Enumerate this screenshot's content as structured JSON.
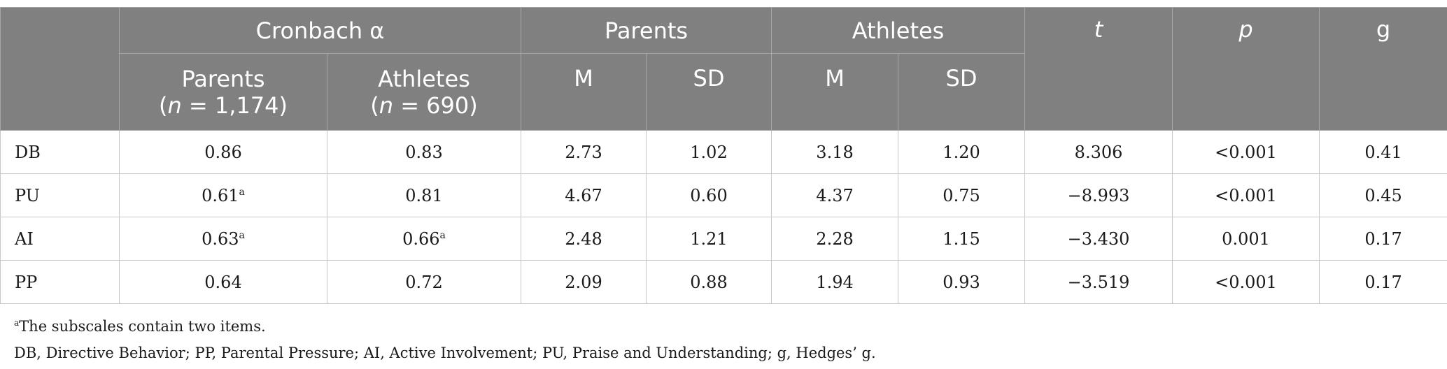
{
  "header": {
    "cronbach": "Cronbach α",
    "parents_group": "Parents",
    "athletes_group": "Athletes",
    "t": "t",
    "p": "p",
    "g": "g",
    "alpha_parents_label": "Parents",
    "alpha_parents_n_prefix": "(",
    "alpha_parents_n_var": "n",
    "alpha_parents_n_value": " = 1,174)",
    "alpha_athletes_label": "Athletes",
    "alpha_athletes_n_prefix": "(",
    "alpha_athletes_n_var": "n",
    "alpha_athletes_n_value": " = 690)",
    "parents_m": "M",
    "parents_sd": "SD",
    "athletes_m": "M",
    "athletes_sd": "SD"
  },
  "rows": [
    {
      "label": "DB",
      "alpha_parents": "0.86",
      "alpha_parents_sup": "",
      "alpha_athletes": "0.83",
      "alpha_athletes_sup": "",
      "parents_m": "2.73",
      "parents_sd": "1.02",
      "athletes_m": "3.18",
      "athletes_sd": "1.20",
      "t": "8.306",
      "p": "<0.001",
      "g": "0.41"
    },
    {
      "label": "PU",
      "alpha_parents": "0.61",
      "alpha_parents_sup": "a",
      "alpha_athletes": "0.81",
      "alpha_athletes_sup": "",
      "parents_m": "4.67",
      "parents_sd": "0.60",
      "athletes_m": "4.37",
      "athletes_sd": "0.75",
      "t": "−8.993",
      "p": "<0.001",
      "g": "0.45"
    },
    {
      "label": "AI",
      "alpha_parents": "0.63",
      "alpha_parents_sup": "a",
      "alpha_athletes": "0.66",
      "alpha_athletes_sup": "a",
      "parents_m": "2.48",
      "parents_sd": "1.21",
      "athletes_m": "2.28",
      "athletes_sd": "1.15",
      "t": "−3.430",
      "p": "0.001",
      "g": "0.17"
    },
    {
      "label": "PP",
      "alpha_parents": "0.64",
      "alpha_parents_sup": "",
      "alpha_athletes": "0.72",
      "alpha_athletes_sup": "",
      "parents_m": "2.09",
      "parents_sd": "0.88",
      "athletes_m": "1.94",
      "athletes_sd": "0.93",
      "t": "−3.519",
      "p": "<0.001",
      "g": "0.17"
    }
  ],
  "notes": {
    "footnote_mark": "a",
    "footnote_text": "The subscales contain two items.",
    "abbreviations": "DB, Directive Behavior; PP, Parental Pressure; AI, Active Involvement; PU, Praise and Understanding; g, Hedges’ g."
  }
}
